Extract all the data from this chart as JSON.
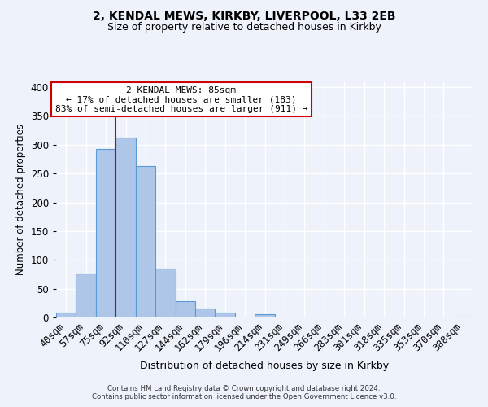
{
  "title1": "2, KENDAL MEWS, KIRKBY, LIVERPOOL, L33 2EB",
  "title2": "Size of property relative to detached houses in Kirkby",
  "xlabel": "Distribution of detached houses by size in Kirkby",
  "ylabel": "Number of detached properties",
  "bin_labels": [
    "40sqm",
    "57sqm",
    "75sqm",
    "92sqm",
    "110sqm",
    "127sqm",
    "144sqm",
    "162sqm",
    "179sqm",
    "196sqm",
    "214sqm",
    "231sqm",
    "249sqm",
    "266sqm",
    "283sqm",
    "301sqm",
    "318sqm",
    "335sqm",
    "353sqm",
    "370sqm",
    "388sqm"
  ],
  "bar_values": [
    8,
    76,
    292,
    313,
    263,
    85,
    28,
    16,
    9,
    0,
    5,
    0,
    0,
    0,
    0,
    0,
    0,
    0,
    0,
    0,
    2
  ],
  "bar_color": "#aec6e8",
  "bar_edge_color": "#5b9bd5",
  "property_line_color": "#cc0000",
  "annotation_title": "2 KENDAL MEWS: 85sqm",
  "annotation_line1": "← 17% of detached houses are smaller (183)",
  "annotation_line2": "83% of semi-detached houses are larger (911) →",
  "annotation_box_color": "#ffffff",
  "annotation_box_edge_color": "#cc0000",
  "footer1": "Contains HM Land Registry data © Crown copyright and database right 2024.",
  "footer2": "Contains public sector information licensed under the Open Government Licence v3.0.",
  "ylim": [
    0,
    410
  ],
  "background_color": "#eef2fb"
}
